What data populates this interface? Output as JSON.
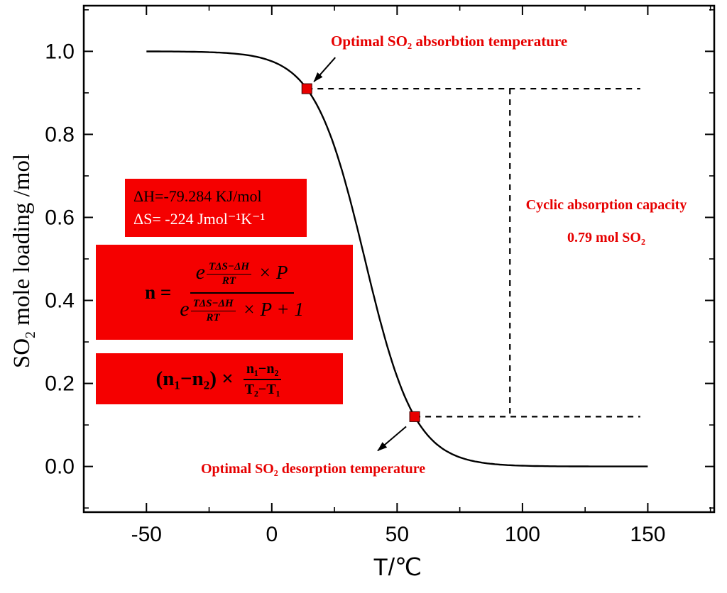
{
  "colors": {
    "red_box": "#F50000",
    "red_text": "#E60000",
    "curve": "#000000",
    "marker_fill": "#E80000",
    "marker_edge": "#3A0000"
  },
  "chart_data": {
    "type": "line",
    "title": "",
    "xlabel": "T/℃",
    "ylabel": "SO₂ mole loading /mol",
    "ylabel_pre": "SO",
    "ylabel_sub": "2",
    "ylabel_post": " mole loading /mol",
    "xlim": [
      -75,
      176.5
    ],
    "ylim": [
      -0.11,
      1.11
    ],
    "x_ticks": [
      -50,
      0,
      50,
      100,
      150
    ],
    "y_ticks": [
      0,
      0.2,
      0.4,
      0.6,
      0.8,
      1
    ],
    "x_minor_step": 25,
    "y_minor_step": 0.2,
    "grid": false,
    "legend": "none",
    "curve": {
      "shape": "decreasing-logistic",
      "midpoint_T": 37.1,
      "width": 10,
      "T_start": -50,
      "T_end": 150
    },
    "key_points": [
      {
        "name": "optimal-absorption",
        "T": 14,
        "n": 0.91
      },
      {
        "name": "optimal-desorption",
        "T": 57,
        "n": 0.12
      }
    ],
    "guides": {
      "dash_end_T": 147,
      "capacity_T": 95
    },
    "cyclic_capacity_mol": 0.79
  },
  "annotations": {
    "absorption": "Optimal SO₂ absorbtion temperature",
    "desorption": "Optimal SO₂ desorption temperature",
    "capacity_title": "Cyclic absorption capacity",
    "capacity_value": "0.79 mol SO₂"
  },
  "thermo_box": {
    "line1": "ΔH=-79.284 KJ/mol",
    "line2": "ΔS= -224 Jmol⁻¹K⁻¹"
  },
  "equation_box": {
    "lhs": "n =",
    "e": "e",
    "exp_num": "TΔS−ΔH",
    "exp_den": "RT",
    "num_tail": "× P",
    "den_tail": "× P + 1"
  },
  "capacity_formula": {
    "prefix": "(n₁−n₂) ×",
    "frac_num": "n₁−n₂",
    "frac_den": "T₂−T₁"
  }
}
